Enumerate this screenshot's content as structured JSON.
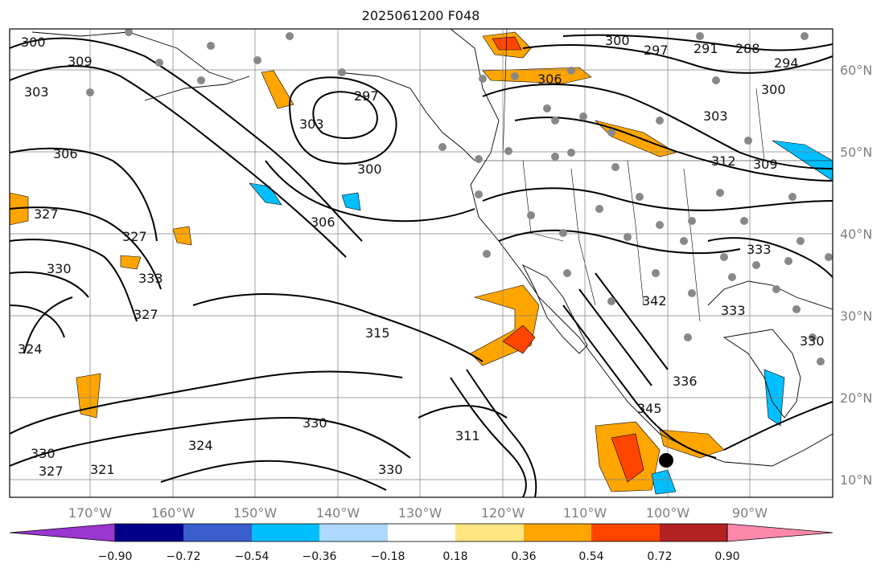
{
  "title": "2025061200 F048",
  "lon_labels": [
    "170°W",
    "160°W",
    "150°W",
    "140°W",
    "130°W",
    "120°W",
    "110°W",
    "100°W",
    "90°W"
  ],
  "lat_labels": [
    "60°N",
    "50°N",
    "40°N",
    "30°N",
    "20°N",
    "10°N"
  ],
  "colorbar": {
    "ticks": [
      "−0.90",
      "−0.72",
      "−0.54",
      "−0.36",
      "−0.18",
      "0.18",
      "0.36",
      "0.54",
      "0.72",
      "0.90"
    ],
    "colors": [
      "#9a35d0",
      "#00008b",
      "#3a5fcd",
      "#00bfff",
      "#add8ff",
      "#ffffff",
      "#ffe680",
      "#ffa500",
      "#ff4500",
      "#b22222",
      "#ff88aa"
    ]
  },
  "contour_labels": [
    "300",
    "309",
    "303",
    "306",
    "327",
    "327",
    "330",
    "333",
    "324",
    "327",
    "330",
    "327",
    "321",
    "324",
    "330",
    "330",
    "297",
    "303",
    "300",
    "306",
    "315",
    "311",
    "345",
    "342",
    "336",
    "300",
    "297",
    "291",
    "288",
    "294",
    "300",
    "303",
    "312",
    "309",
    "333",
    "330",
    "333",
    "306"
  ],
  "colors": {
    "contour": "#000000",
    "grid": "#808080",
    "coast": "#000000",
    "stations": "#888888"
  }
}
